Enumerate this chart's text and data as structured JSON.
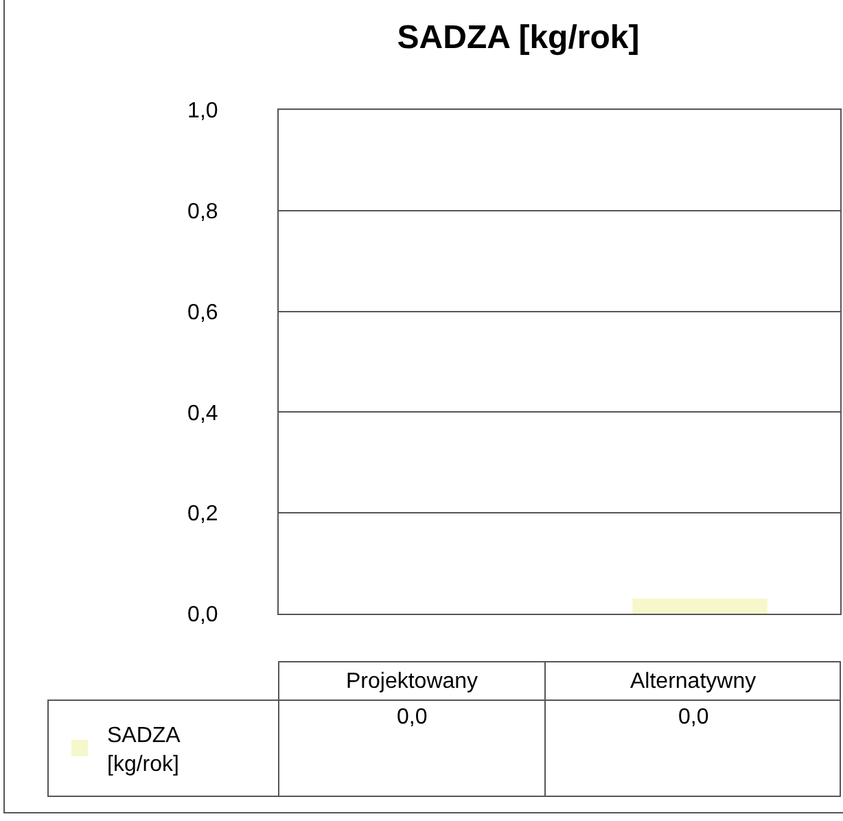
{
  "chart_data": {
    "type": "bar",
    "title": "SADZA [kg/rok]",
    "categories": [
      "Projektowany",
      "Alternatywny"
    ],
    "series": [
      {
        "name": "SADZA [kg/rok]",
        "color": "#f7f7cc",
        "values": [
          0,
          0.03
        ],
        "value_labels": [
          "0,0",
          "0,0"
        ]
      }
    ],
    "ylim": [
      0,
      1
    ],
    "yticks": [
      {
        "value": 0,
        "label": "0,0"
      },
      {
        "value": 0.2,
        "label": "0,2"
      },
      {
        "value": 0.4,
        "label": "0,4"
      },
      {
        "value": 0.6,
        "label": "0,6"
      },
      {
        "value": 0.8,
        "label": "0,8"
      },
      {
        "value": 1,
        "label": "1,0"
      }
    ],
    "grid": "y",
    "legend": "bottom left"
  }
}
